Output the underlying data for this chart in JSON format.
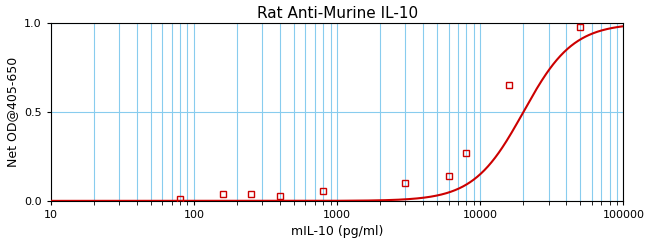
{
  "title": "Rat Anti-Murine IL-10",
  "xlabel": "mIL-10 (pg/ml)",
  "ylabel": "Net OD@405-650",
  "xlim": [
    10,
    100000
  ],
  "ylim": [
    0,
    1.0
  ],
  "yticks": [
    0,
    0.5,
    1
  ],
  "data_x": [
    80,
    160,
    250,
    400,
    800,
    3000,
    6000,
    8000,
    16000,
    50000
  ],
  "data_y": [
    0.01,
    0.04,
    0.04,
    0.03,
    0.055,
    0.1,
    0.14,
    0.27,
    0.65,
    0.98
  ],
  "curve_color": "#cc0000",
  "marker_color": "#cc0000",
  "grid_color": "#88ccee",
  "background_color": "#ffffff",
  "title_fontsize": 11,
  "axis_label_fontsize": 9,
  "tick_fontsize": 8,
  "linewidth": 1.5,
  "marker_size": 5
}
